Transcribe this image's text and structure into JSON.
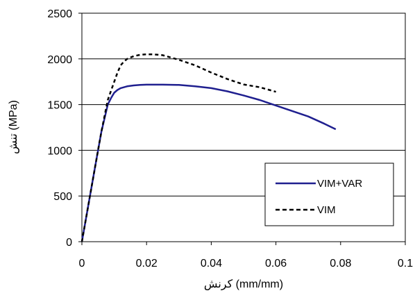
{
  "chart_data": {
    "type": "line",
    "title": "",
    "xlabel": "کرنش (mm/mm)",
    "ylabel": "تنش (MPa)",
    "xlim": [
      0,
      0.1
    ],
    "ylim": [
      0,
      2500
    ],
    "x_ticks": [
      "0",
      "0.02",
      "0.04",
      "0.06",
      "0.08",
      "0.1"
    ],
    "y_ticks": [
      "0",
      "500",
      "1000",
      "1500",
      "2000",
      "2500"
    ],
    "grid": "horizontal",
    "legend_position": "lower-right",
    "series": [
      {
        "name": "VIM+VAR",
        "color": "#1f1f8f",
        "style": "solid",
        "x": [
          0,
          0.002,
          0.004,
          0.006,
          0.008,
          0.009,
          0.01,
          0.011,
          0.012,
          0.014,
          0.016,
          0.018,
          0.02,
          0.025,
          0.03,
          0.035,
          0.04,
          0.045,
          0.05,
          0.055,
          0.06,
          0.065,
          0.07,
          0.075,
          0.0785
        ],
        "y": [
          0,
          400,
          800,
          1200,
          1500,
          1570,
          1630,
          1660,
          1680,
          1700,
          1710,
          1715,
          1718,
          1718,
          1715,
          1700,
          1680,
          1645,
          1600,
          1550,
          1490,
          1430,
          1370,
          1290,
          1230
        ]
      },
      {
        "name": "VIM",
        "color": "#000000",
        "style": "dashed",
        "x": [
          0,
          0.002,
          0.004,
          0.006,
          0.008,
          0.009,
          0.01,
          0.011,
          0.012,
          0.013,
          0.014,
          0.016,
          0.018,
          0.02,
          0.022,
          0.025,
          0.03,
          0.035,
          0.04,
          0.045,
          0.05,
          0.055,
          0.06
        ],
        "y": [
          0,
          400,
          800,
          1200,
          1550,
          1650,
          1750,
          1850,
          1930,
          1970,
          2000,
          2030,
          2045,
          2050,
          2050,
          2040,
          1990,
          1930,
          1850,
          1780,
          1720,
          1690,
          1640
        ]
      }
    ]
  }
}
